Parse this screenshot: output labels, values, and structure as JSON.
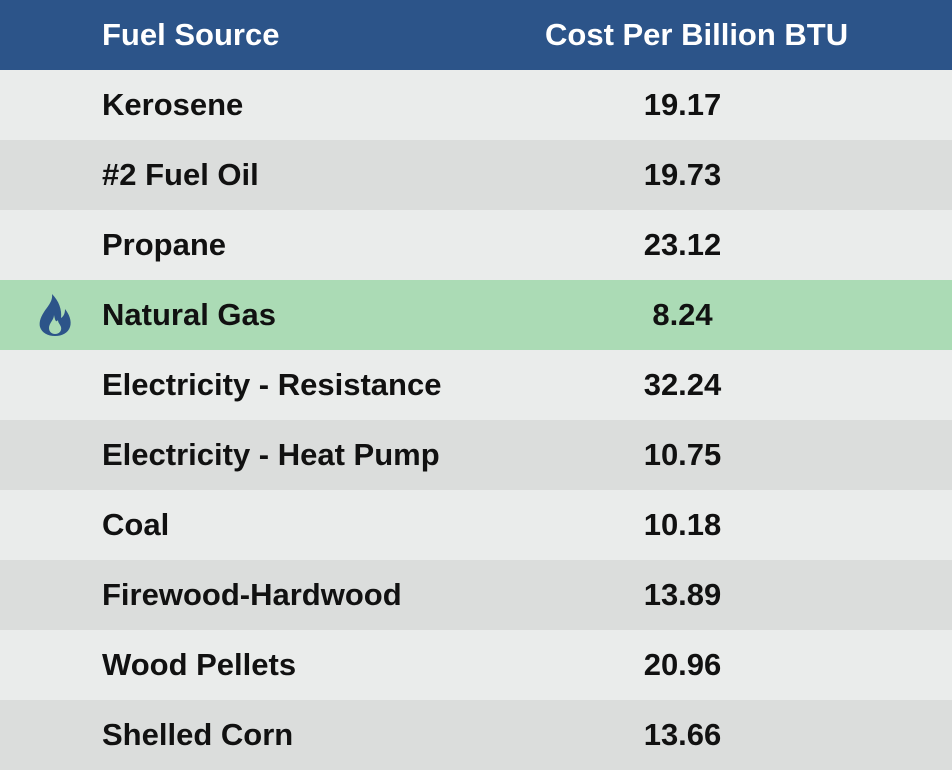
{
  "chart_data": {
    "type": "table",
    "columns": [
      "Fuel Source",
      "Cost Per Billion BTU"
    ],
    "rows": [
      {
        "fuel": "Kerosene",
        "cost": "19.17"
      },
      {
        "fuel": "#2 Fuel Oil",
        "cost": "19.73"
      },
      {
        "fuel": "Propane",
        "cost": "23.12"
      },
      {
        "fuel": "Natural Gas",
        "cost": "8.24",
        "highlight": true,
        "icon": "flame-icon"
      },
      {
        "fuel": "Electricity - Resistance",
        "cost": "32.24"
      },
      {
        "fuel": "Electricity - Heat Pump",
        "cost": "10.75"
      },
      {
        "fuel": "Coal",
        "cost": "10.18"
      },
      {
        "fuel": "Firewood-Hardwood",
        "cost": "13.89"
      },
      {
        "fuel": "Wood Pellets",
        "cost": "20.96"
      },
      {
        "fuel": "Shelled Corn",
        "cost": "13.66"
      }
    ]
  },
  "colors": {
    "header_bg": "#2c5489",
    "row_light": "#eaeceb",
    "row_dark": "#dbdddc",
    "highlight": "#abdbb5",
    "icon": "#2c5489"
  }
}
